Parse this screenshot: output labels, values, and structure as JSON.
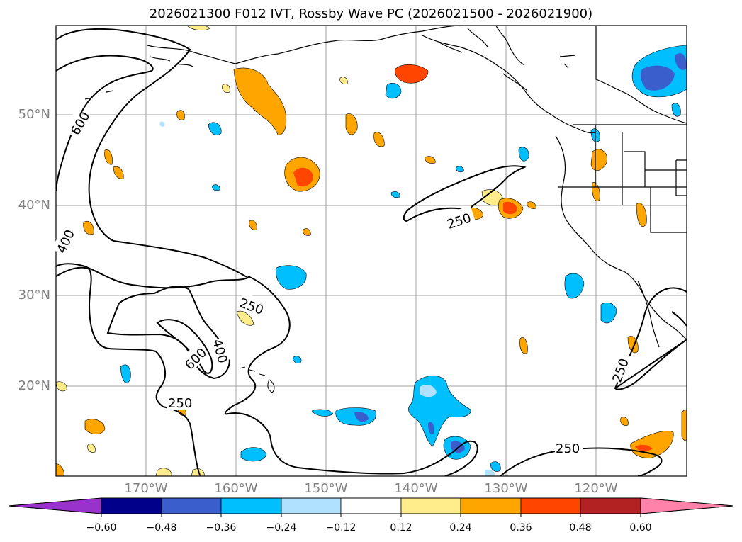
{
  "title": "2026021300 F012 IVT, Rossby Wave PC (2026021500 - 2026021900)",
  "map": {
    "lat_labels": [
      "50°N",
      "40°N",
      "30°N",
      "20°N"
    ],
    "lon_labels": [
      "170°W",
      "160°W",
      "150°W",
      "140°W",
      "130°W",
      "120°W"
    ],
    "contour_labels": [
      "600",
      "400",
      "250",
      "250",
      "600",
      "400",
      "250",
      "250",
      "250"
    ]
  },
  "colorbar": {
    "ticks": [
      "−0.60",
      "−0.48",
      "−0.36",
      "−0.24",
      "−0.12",
      "0.12",
      "0.24",
      "0.36",
      "0.48",
      "0.60"
    ],
    "colors": [
      "#9932cc",
      "#00008b",
      "#3a5fcd",
      "#00bfff",
      "#b0e2ff",
      "#ffffff",
      "#ffec8b",
      "#ffa500",
      "#ff4500",
      "#b22222",
      "#ff82ab"
    ]
  }
}
